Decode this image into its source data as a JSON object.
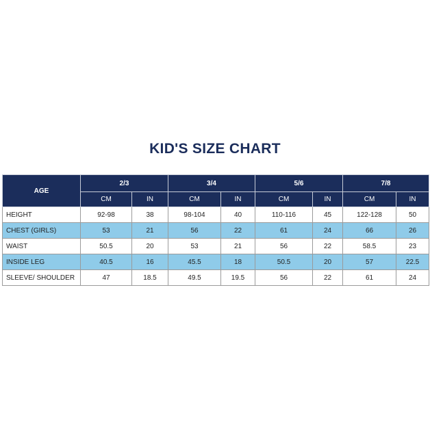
{
  "title": "KID'S SIZE CHART",
  "table": {
    "age_label": "AGE",
    "ages": [
      "2/3",
      "3/4",
      "5/6",
      "7/8"
    ],
    "units": [
      "CM",
      "IN",
      "CM",
      "IN",
      "CM",
      "IN",
      "CM",
      "IN"
    ],
    "rows": [
      {
        "label": "HEIGHT",
        "values": [
          "92-98",
          "38",
          "98-104",
          "40",
          "110-116",
          "45",
          "122-128",
          "50"
        ]
      },
      {
        "label": "CHEST (GIRLS)",
        "values": [
          "53",
          "21",
          "56",
          "22",
          "61",
          "24",
          "66",
          "26"
        ]
      },
      {
        "label": "WAIST",
        "values": [
          "50.5",
          "20",
          "53",
          "21",
          "56",
          "22",
          "58.5",
          "23"
        ]
      },
      {
        "label": "INSIDE LEG",
        "values": [
          "40.5",
          "16",
          "45.5",
          "18",
          "50.5",
          "20",
          "57",
          "22.5"
        ]
      },
      {
        "label": "SLEEVE/ SHOULDER",
        "values": [
          "47",
          "18.5",
          "49.5",
          "19.5",
          "56",
          "22",
          "61",
          "24"
        ]
      }
    ]
  }
}
